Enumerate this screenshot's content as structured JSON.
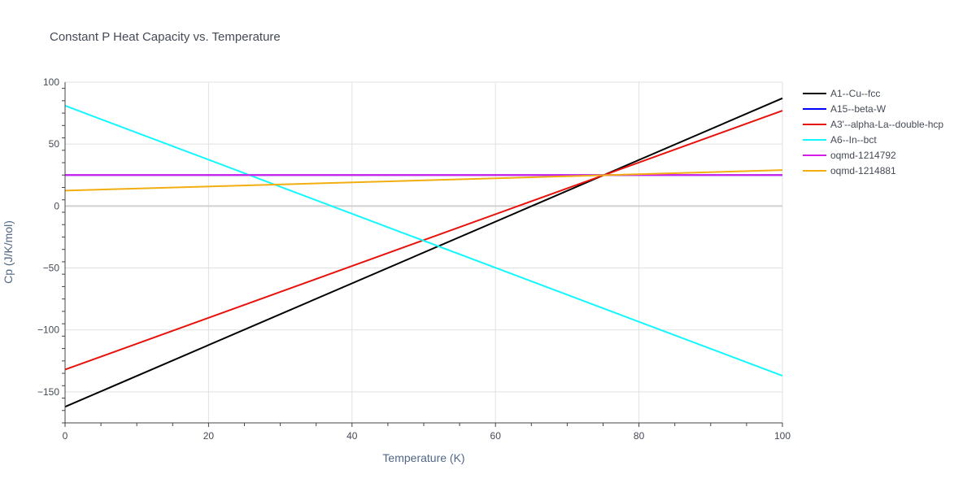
{
  "chart_data": {
    "type": "line",
    "title": "Constant P Heat Capacity vs. Temperature",
    "xlabel": "Temperature (K)",
    "ylabel": "Cp (J/K/mol)",
    "xlim": [
      0,
      100
    ],
    "ylim": [
      -175,
      100
    ],
    "x_ticks": [
      0,
      20,
      40,
      60,
      80,
      100
    ],
    "x_tick_labels": [
      "0",
      "20",
      "40",
      "60",
      "80",
      "100"
    ],
    "y_ticks": [
      100,
      50,
      0,
      -50,
      -100,
      -150
    ],
    "y_tick_labels": [
      "100",
      "50",
      "0",
      "−50",
      "−100",
      "−150"
    ],
    "grid": true,
    "legend_position": "right",
    "series": [
      {
        "name": "A1--Cu--fcc",
        "color": "#000000",
        "x": [
          0,
          100
        ],
        "y": [
          -162,
          87
        ]
      },
      {
        "name": "A15--beta-W",
        "color": "#0000ff",
        "x": [
          0,
          100
        ],
        "y": [
          25,
          25
        ]
      },
      {
        "name": "A3'--alpha-La--double-hcp",
        "color": "#e8120c",
        "x": [
          0,
          100
        ],
        "y": [
          -132,
          77
        ]
      },
      {
        "name": "A6--In--bct",
        "color": "#14f7ff",
        "x": [
          0,
          100
        ],
        "y": [
          81,
          -137
        ]
      },
      {
        "name": "oqmd-1214792",
        "color": "#d41ee8",
        "x": [
          0,
          100
        ],
        "y": [
          25,
          25
        ]
      },
      {
        "name": "oqmd-1214881",
        "color": "#f2ae10",
        "x": [
          0,
          100
        ],
        "y": [
          12.5,
          29
        ]
      }
    ]
  }
}
